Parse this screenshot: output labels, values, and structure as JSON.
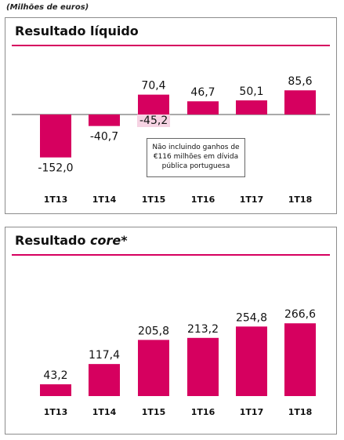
{
  "unit_note": "(Milhões de euros)",
  "panels": {
    "net": {
      "title": "Resultado líquido"
    },
    "core": {
      "title_main": "Resultado ",
      "title_em": "core",
      "title_suffix": "*"
    }
  },
  "callout": {
    "adjusted_label": "-45,2",
    "lines": [
      "Não incluindo ganhos de",
      "€116 milhões em dívida",
      "pública portuguesa"
    ]
  },
  "colors": {
    "bar": "#d6005f",
    "rule": "#d6005f",
    "highlight": "#f6d3e3"
  },
  "chart_data": [
    {
      "type": "bar",
      "title": "Resultado líquido",
      "categories": [
        "1T13",
        "1T14",
        "1T15",
        "1T16",
        "1T17",
        "1T18"
      ],
      "values": [
        -152.0,
        -40.7,
        70.4,
        46.7,
        50.1,
        85.6
      ],
      "labels": [
        "-152,0",
        "-40,7",
        "70,4",
        "46,7",
        "50,1",
        "85,6"
      ],
      "annotation": {
        "category": "1T15",
        "value": -45.2,
        "label": "-45,2"
      }
    },
    {
      "type": "bar",
      "title": "Resultado core*",
      "categories": [
        "1T13",
        "1T14",
        "1T15",
        "1T16",
        "1T17",
        "1T18"
      ],
      "values": [
        43.2,
        117.4,
        205.8,
        213.2,
        254.8,
        266.6
      ],
      "labels": [
        "43,2",
        "117,4",
        "205,8",
        "213,2",
        "254,8",
        "266,6"
      ]
    }
  ]
}
